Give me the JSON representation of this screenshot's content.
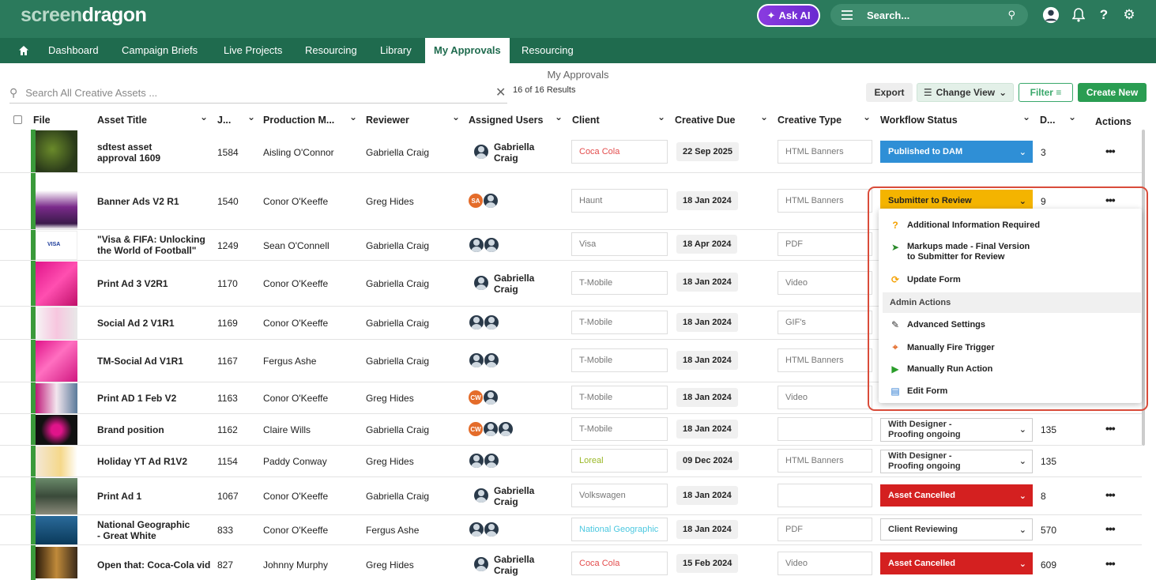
{
  "app": {
    "logo_part1": "screen",
    "logo_part2": "dragon",
    "ask_ai": "Ask AI",
    "search_placeholder": "Search..."
  },
  "nav": [
    "Dashboard",
    "Campaign Briefs",
    "Live Projects",
    "Resourcing",
    "Library",
    "My Approvals",
    "Resourcing"
  ],
  "page": {
    "title": "My Approvals",
    "search_placeholder": "Search  All Creative Assets ...",
    "results": "16 of 16 Results"
  },
  "toolbar": {
    "export": "Export",
    "change_view": "Change View",
    "filter": "Filter",
    "create_new": "Create New"
  },
  "columns": [
    "File",
    "Asset Title",
    "J...",
    "Production M...",
    "Reviewer",
    "Assigned Users",
    "Client",
    "Creative Due",
    "Creative Type",
    "Workflow Status",
    "D...",
    "Actions"
  ],
  "rows": [
    {
      "title1": "sdtest asset",
      "title2": "approval 1609",
      "job": "1584",
      "pm": "Aisling O'Connor",
      "reviewer": "Gabriella Craig",
      "assigned_name1": "Gabriella",
      "assigned_name2": "Craig",
      "client": "Coca Cola",
      "due": "22 Sep 2025",
      "type": "HTML Banners",
      "status": "Published to DAM",
      "d": "3"
    },
    {
      "title1": "Banner Ads V2 R1",
      "title2": "",
      "job": "1540",
      "pm": "Conor O'Keeffe",
      "reviewer": "Greg Hides",
      "initials": "SA",
      "client": "Haunt",
      "due": "18 Jan 2024",
      "type": "HTML Banners",
      "status": "Submitter to Review",
      "d": "9"
    },
    {
      "title1": "\"Visa & FIFA: Unlocking",
      "title2": "the World of Football\"",
      "job": "1249",
      "pm": "Sean O'Connell",
      "reviewer": "Gabriella Craig",
      "client": "Visa",
      "due": "18 Apr 2024",
      "type": "PDF"
    },
    {
      "title1": "Print Ad 3 V2R1",
      "title2": "",
      "job": "1170",
      "pm": "Conor O'Keeffe",
      "reviewer": "Gabriella Craig",
      "assigned_name1": "Gabriella",
      "assigned_name2": "Craig",
      "client": "T-Mobile",
      "due": "18 Jan 2024",
      "type": "Video"
    },
    {
      "title1": "Social Ad 2 V1R1",
      "title2": "",
      "job": "1169",
      "pm": "Conor O'Keeffe",
      "reviewer": "Gabriella Craig",
      "client": "T-Mobile",
      "due": "18 Jan 2024",
      "type": "GIF's"
    },
    {
      "title1": "TM-Social Ad V1R1",
      "title2": "",
      "job": "1167",
      "pm": "Fergus Ashe",
      "reviewer": "Gabriella Craig",
      "client": "T-Mobile",
      "due": "18 Jan 2024",
      "type": "HTML Banners"
    },
    {
      "title1": "Print AD 1 Feb V2",
      "title2": "",
      "job": "1163",
      "pm": "Conor O'Keeffe",
      "reviewer": "Greg Hides",
      "initials": "CW",
      "client": "T-Mobile",
      "due": "18 Jan 2024",
      "type": "Video"
    },
    {
      "title1": "Brand position",
      "title2": "",
      "job": "1162",
      "pm": "Claire Wills",
      "reviewer": "Gabriella Craig",
      "initials": "CW",
      "client": "T-Mobile",
      "due": "18 Jan 2024",
      "type": "",
      "status1": "With Designer -",
      "status2": "Proofing ongoing",
      "d": "135"
    },
    {
      "title1": "Holiday YT Ad R1V2",
      "title2": "",
      "job": "1154",
      "pm": "Paddy Conway",
      "reviewer": "Greg Hides",
      "client": "Loreal",
      "due": "09 Dec 2024",
      "type": "HTML Banners",
      "status1": "With Designer -",
      "status2": "Proofing ongoing",
      "d": "135"
    },
    {
      "title1": "Print Ad 1",
      "title2": "",
      "job": "1067",
      "pm": "Conor O'Keeffe",
      "reviewer": "Gabriella Craig",
      "assigned_name1": "Gabriella",
      "assigned_name2": "Craig",
      "client": "Volkswagen",
      "due": "18 Jan 2024",
      "type": "",
      "status": "Asset Cancelled",
      "d": "8"
    },
    {
      "title1": "National Geographic",
      "title2": "- Great White",
      "job": "833",
      "pm": "Conor O'Keeffe",
      "reviewer": "Fergus Ashe",
      "client": "National Geographic",
      "due": "18 Jan 2024",
      "type": "PDF",
      "status": "Client Reviewing",
      "d": "570"
    },
    {
      "title1": "Open that: Coca-Cola vid",
      "title2": "",
      "job": "827",
      "pm": "Johnny Murphy",
      "reviewer": "Greg Hides",
      "assigned_name1": "Gabriella",
      "assigned_name2": "Craig",
      "client": "Coca Cola",
      "due": "15 Feb 2024",
      "type": "Video",
      "status": "Asset Cancelled",
      "d": "609"
    }
  ],
  "menu": {
    "items": [
      "Additional Information Required",
      "Markups made - Final Version",
      "to Submitter for Review",
      "Update Form"
    ],
    "admin_header": "Admin Actions",
    "admin_items": [
      "Advanced Settings",
      "Manually Fire Trigger",
      "Manually Run Action",
      "Edit Form"
    ]
  },
  "colors": {
    "brand": "#2b7a5c",
    "nav": "#1f6b4e",
    "published": "#2f8fd6",
    "pending": "#f4b400",
    "cancelled": "#d42020",
    "highlight": "#d94c3a"
  }
}
